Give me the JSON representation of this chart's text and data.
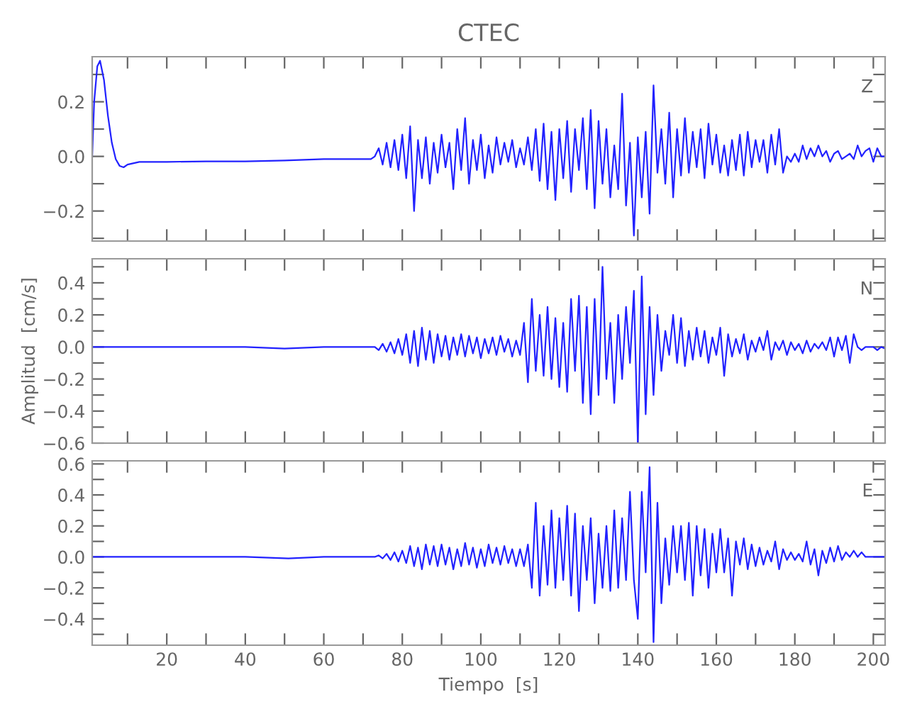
{
  "chart_data": [
    {
      "type": "line",
      "title": "CTEC",
      "annotations": [
        "Z"
      ],
      "color": "#2222ff",
      "xlim": [
        1,
        203
      ],
      "ylim": [
        -0.31,
        0.365
      ],
      "tick_labels": "y",
      "grid": false,
      "marker": "none",
      "line_style": "solid",
      "xticks": [
        {
          "value": 10,
          "label": null
        },
        {
          "value": 20,
          "label": null
        },
        {
          "value": 30,
          "label": null
        },
        {
          "value": 40,
          "label": null
        },
        {
          "value": 50,
          "label": null
        },
        {
          "value": 60,
          "label": null
        },
        {
          "value": 70,
          "label": null
        },
        {
          "value": 80,
          "label": null
        },
        {
          "value": 90,
          "label": null
        },
        {
          "value": 100,
          "label": null
        },
        {
          "value": 110,
          "label": null
        },
        {
          "value": 120,
          "label": null
        },
        {
          "value": 130,
          "label": null
        },
        {
          "value": 140,
          "label": null
        },
        {
          "value": 150,
          "label": null
        },
        {
          "value": 160,
          "label": null
        },
        {
          "value": 170,
          "label": null
        },
        {
          "value": 180,
          "label": null
        },
        {
          "value": 190,
          "label": null
        },
        {
          "value": 200,
          "label": null
        }
      ],
      "yticks": [
        {
          "value": -0.3,
          "label": null
        },
        {
          "value": -0.2,
          "label": "−0.2"
        },
        {
          "value": -0.1,
          "label": null
        },
        {
          "value": 0,
          "label": "0.0"
        },
        {
          "value": 0.1,
          "label": null
        },
        {
          "value": 0.2,
          "label": "0.2"
        },
        {
          "value": 0.3,
          "label": null
        }
      ],
      "x": [
        1,
        1.5,
        2.3,
        3,
        4,
        5,
        6,
        7,
        8,
        9,
        10,
        13,
        20,
        30,
        40,
        50,
        60,
        70,
        72,
        73,
        74,
        75,
        76,
        77,
        78,
        79,
        80,
        81,
        82,
        83,
        84,
        85,
        86,
        87,
        88,
        89,
        90,
        91,
        92,
        93,
        94,
        95,
        96,
        97,
        98,
        99,
        100,
        101,
        102,
        103,
        104,
        105,
        106,
        107,
        108,
        109,
        110,
        111,
        112,
        113,
        114,
        115,
        116,
        117,
        118,
        119,
        120,
        121,
        122,
        123,
        124,
        125,
        126,
        127,
        128,
        129,
        130,
        131,
        132,
        133,
        134,
        135,
        136,
        137,
        138,
        139,
        140,
        141,
        142,
        143,
        144,
        145,
        146,
        147,
        148,
        149,
        150,
        151,
        152,
        153,
        154,
        155,
        156,
        157,
        158,
        159,
        160,
        161,
        162,
        163,
        164,
        165,
        166,
        167,
        168,
        169,
        170,
        171,
        172,
        173,
        174,
        175,
        176,
        177,
        178,
        179,
        180,
        181,
        182,
        183,
        184,
        185,
        186,
        187,
        188,
        189,
        190,
        191,
        192,
        193,
        194,
        195,
        196,
        197,
        198,
        199,
        200,
        201,
        202,
        203
      ],
      "values": [
        0.0,
        0.2,
        0.33,
        0.35,
        0.28,
        0.15,
        0.05,
        -0.01,
        -0.035,
        -0.04,
        -0.03,
        -0.02,
        -0.02,
        -0.018,
        -0.018,
        -0.015,
        -0.01,
        -0.01,
        -0.01,
        0.0,
        0.03,
        -0.03,
        0.05,
        -0.04,
        0.06,
        -0.05,
        0.08,
        -0.08,
        0.11,
        -0.2,
        0.06,
        -0.08,
        0.07,
        -0.1,
        0.05,
        -0.06,
        0.08,
        -0.04,
        0.05,
        -0.12,
        0.1,
        -0.05,
        0.14,
        -0.1,
        0.06,
        -0.05,
        0.08,
        -0.08,
        0.04,
        -0.06,
        0.07,
        -0.03,
        0.05,
        -0.02,
        0.06,
        -0.04,
        0.03,
        -0.03,
        0.07,
        -0.05,
        0.1,
        -0.09,
        0.12,
        -0.12,
        0.09,
        -0.16,
        0.1,
        -0.08,
        0.13,
        -0.13,
        0.1,
        -0.05,
        0.14,
        -0.12,
        0.17,
        -0.19,
        0.13,
        -0.1,
        0.1,
        -0.15,
        0.04,
        -0.12,
        0.23,
        -0.18,
        0.05,
        -0.29,
        0.07,
        -0.15,
        0.09,
        -0.21,
        0.26,
        -0.06,
        0.1,
        -0.1,
        0.16,
        -0.15,
        0.1,
        -0.07,
        0.14,
        -0.06,
        0.09,
        -0.04,
        0.1,
        -0.08,
        0.12,
        -0.03,
        0.08,
        -0.06,
        0.04,
        -0.07,
        0.06,
        -0.05,
        0.08,
        -0.07,
        0.09,
        -0.04,
        0.06,
        -0.02,
        0.06,
        -0.06,
        0.08,
        -0.03,
        0.1,
        -0.06,
        0.0,
        -0.02,
        0.01,
        -0.02,
        0.04,
        -0.01,
        0.03,
        0.0,
        0.04,
        0.0,
        0.02,
        -0.02,
        0.01,
        0.02,
        -0.01,
        0.0,
        0.01,
        -0.01,
        0.04,
        0.0,
        0.02,
        0.03,
        -0.02,
        0.03,
        0.0,
        0.0
      ]
    },
    {
      "type": "line",
      "ylabel": "Amplitud  [cm/s]",
      "annotations": [
        "N"
      ],
      "color": "#2222ff",
      "xlim": [
        1,
        203
      ],
      "ylim": [
        -0.6,
        0.55
      ],
      "tick_labels": "y",
      "grid": false,
      "marker": "none",
      "line_style": "solid",
      "xticks": [
        {
          "value": 10,
          "label": null
        },
        {
          "value": 20,
          "label": null
        },
        {
          "value": 30,
          "label": null
        },
        {
          "value": 40,
          "label": null
        },
        {
          "value": 50,
          "label": null
        },
        {
          "value": 60,
          "label": null
        },
        {
          "value": 70,
          "label": null
        },
        {
          "value": 80,
          "label": null
        },
        {
          "value": 90,
          "label": null
        },
        {
          "value": 100,
          "label": null
        },
        {
          "value": 110,
          "label": null
        },
        {
          "value": 120,
          "label": null
        },
        {
          "value": 130,
          "label": null
        },
        {
          "value": 140,
          "label": null
        },
        {
          "value": 150,
          "label": null
        },
        {
          "value": 160,
          "label": null
        },
        {
          "value": 170,
          "label": null
        },
        {
          "value": 180,
          "label": null
        },
        {
          "value": 190,
          "label": null
        },
        {
          "value": 200,
          "label": null
        }
      ],
      "yticks": [
        {
          "value": -0.6,
          "label": "−0.6"
        },
        {
          "value": -0.5,
          "label": null
        },
        {
          "value": -0.4,
          "label": "−0.4"
        },
        {
          "value": -0.3,
          "label": null
        },
        {
          "value": -0.2,
          "label": "−0.2"
        },
        {
          "value": -0.1,
          "label": null
        },
        {
          "value": 0,
          "label": "0.0"
        },
        {
          "value": 0.1,
          "label": null
        },
        {
          "value": 0.2,
          "label": "0.2"
        },
        {
          "value": 0.3,
          "label": null
        },
        {
          "value": 0.4,
          "label": "0.4"
        },
        {
          "value": 0.5,
          "label": null
        }
      ],
      "x": [
        1,
        10,
        20,
        30,
        40,
        50,
        60,
        72,
        73,
        74,
        75,
        76,
        77,
        78,
        79,
        80,
        81,
        82,
        83,
        84,
        85,
        86,
        87,
        88,
        89,
        90,
        91,
        92,
        93,
        94,
        95,
        96,
        97,
        98,
        99,
        100,
        101,
        102,
        103,
        104,
        105,
        106,
        107,
        108,
        109,
        110,
        111,
        112,
        113,
        114,
        115,
        116,
        117,
        118,
        119,
        120,
        121,
        122,
        123,
        124,
        125,
        126,
        127,
        128,
        129,
        130,
        131,
        132,
        133,
        134,
        135,
        136,
        137,
        138,
        139,
        140,
        141,
        142,
        143,
        144,
        145,
        146,
        147,
        148,
        149,
        150,
        151,
        152,
        153,
        154,
        155,
        156,
        157,
        158,
        159,
        160,
        161,
        162,
        163,
        164,
        165,
        166,
        167,
        168,
        169,
        170,
        171,
        172,
        173,
        174,
        175,
        176,
        177,
        178,
        179,
        180,
        181,
        182,
        183,
        184,
        185,
        186,
        187,
        188,
        189,
        190,
        191,
        192,
        193,
        194,
        195,
        196,
        197,
        198,
        199,
        200,
        201,
        202,
        203
      ],
      "values": [
        0.0,
        0.0,
        0.0,
        0.0,
        0.0,
        -0.01,
        0.0,
        0.0,
        0.0,
        -0.02,
        0.02,
        -0.03,
        0.03,
        -0.04,
        0.05,
        -0.05,
        0.08,
        -0.1,
        0.1,
        -0.12,
        0.12,
        -0.08,
        0.1,
        -0.1,
        0.08,
        -0.06,
        0.07,
        -0.08,
        0.06,
        -0.05,
        0.08,
        -0.06,
        0.07,
        -0.04,
        0.06,
        -0.07,
        0.05,
        -0.04,
        0.06,
        -0.05,
        0.07,
        -0.03,
        0.05,
        -0.06,
        0.04,
        -0.05,
        0.15,
        -0.22,
        0.3,
        -0.15,
        0.2,
        -0.18,
        0.25,
        -0.2,
        0.18,
        -0.25,
        0.15,
        -0.28,
        0.3,
        -0.15,
        0.32,
        -0.35,
        0.25,
        -0.42,
        0.3,
        -0.3,
        0.5,
        -0.2,
        0.15,
        -0.35,
        0.2,
        -0.2,
        0.25,
        -0.1,
        0.35,
        -0.6,
        0.44,
        -0.42,
        0.25,
        -0.3,
        0.2,
        -0.15,
        0.1,
        -0.05,
        0.2,
        -0.1,
        0.18,
        -0.12,
        0.1,
        -0.08,
        0.12,
        -0.06,
        0.1,
        -0.1,
        0.06,
        -0.05,
        0.12,
        -0.18,
        0.08,
        -0.06,
        0.05,
        -0.04,
        0.08,
        -0.08,
        0.04,
        -0.03,
        0.06,
        -0.02,
        0.1,
        -0.08,
        0.03,
        -0.02,
        0.04,
        -0.05,
        0.03,
        -0.02,
        0.02,
        -0.04,
        0.04,
        -0.03,
        0.02,
        -0.01,
        0.03,
        -0.02,
        0.06,
        -0.06,
        0.06,
        -0.02,
        0.07,
        -0.1,
        0.08,
        0.0,
        -0.02,
        0.0,
        0.0,
        0.0,
        -0.02,
        0.0,
        -0.01
      ]
    },
    {
      "type": "line",
      "xlabel": "Tiempo  [s]",
      "annotations": [
        "E"
      ],
      "color": "#2222ff",
      "xlim": [
        1,
        203
      ],
      "ylim": [
        -0.57,
        0.62
      ],
      "grid": false,
      "marker": "none",
      "line_style": "solid",
      "xticks": [
        {
          "value": 10,
          "label": null
        },
        20,
        {
          "value": 30,
          "label": null
        },
        40,
        {
          "value": 50,
          "label": null
        },
        60,
        {
          "value": 70,
          "label": null
        },
        80,
        {
          "value": 90,
          "label": null
        },
        100,
        {
          "value": 110,
          "label": null
        },
        120,
        {
          "value": 130,
          "label": null
        },
        140,
        {
          "value": 150,
          "label": null
        },
        160,
        {
          "value": 170,
          "label": null
        },
        180,
        {
          "value": 190,
          "label": null
        },
        200
      ],
      "yticks": [
        {
          "value": -0.5,
          "label": null
        },
        {
          "value": -0.4,
          "label": "−0.4"
        },
        {
          "value": -0.3,
          "label": null
        },
        {
          "value": -0.2,
          "label": "−0.2"
        },
        {
          "value": -0.1,
          "label": null
        },
        {
          "value": 0,
          "label": "0.0"
        },
        {
          "value": 0.1,
          "label": null
        },
        {
          "value": 0.2,
          "label": "0.2"
        },
        {
          "value": 0.3,
          "label": null
        },
        {
          "value": 0.4,
          "label": "0.4"
        },
        {
          "value": 0.5,
          "label": null
        },
        {
          "value": 0.6,
          "label": "0.6"
        }
      ],
      "x": [
        1,
        10,
        20,
        30,
        40,
        51,
        60,
        72,
        73,
        74,
        75,
        76,
        77,
        78,
        79,
        80,
        81,
        82,
        83,
        84,
        85,
        86,
        87,
        88,
        89,
        90,
        91,
        92,
        93,
        94,
        95,
        96,
        97,
        98,
        99,
        100,
        101,
        102,
        103,
        104,
        105,
        106,
        107,
        108,
        109,
        110,
        111,
        112,
        113,
        114,
        115,
        116,
        117,
        118,
        119,
        120,
        121,
        122,
        123,
        124,
        125,
        126,
        127,
        128,
        129,
        130,
        131,
        132,
        133,
        134,
        135,
        136,
        137,
        138,
        139,
        140,
        141,
        142,
        143,
        144,
        145,
        146,
        147,
        148,
        149,
        150,
        151,
        152,
        153,
        154,
        155,
        156,
        157,
        158,
        159,
        160,
        161,
        162,
        163,
        164,
        165,
        166,
        167,
        168,
        169,
        170,
        171,
        172,
        173,
        174,
        175,
        176,
        177,
        178,
        179,
        180,
        181,
        182,
        183,
        184,
        185,
        186,
        187,
        188,
        189,
        190,
        191,
        192,
        193,
        194,
        195,
        196,
        197,
        198,
        199,
        200,
        201,
        202,
        203
      ],
      "values": [
        0.0,
        0.0,
        0.0,
        0.0,
        0.0,
        -0.01,
        0.0,
        0.0,
        0.0,
        0.01,
        -0.01,
        0.02,
        -0.02,
        0.03,
        -0.03,
        0.04,
        -0.04,
        0.07,
        -0.06,
        0.06,
        -0.08,
        0.08,
        -0.05,
        0.07,
        -0.06,
        0.08,
        -0.05,
        0.06,
        -0.08,
        0.05,
        -0.06,
        0.09,
        -0.05,
        0.06,
        -0.07,
        0.05,
        -0.06,
        0.08,
        -0.04,
        0.06,
        -0.05,
        0.07,
        -0.04,
        0.05,
        -0.06,
        0.05,
        -0.06,
        0.08,
        -0.2,
        0.35,
        -0.25,
        0.2,
        -0.18,
        0.3,
        -0.2,
        0.25,
        -0.15,
        0.33,
        -0.25,
        0.28,
        -0.35,
        0.2,
        -0.15,
        0.25,
        -0.3,
        0.15,
        -0.2,
        0.2,
        -0.22,
        0.3,
        -0.2,
        0.25,
        -0.15,
        0.42,
        -0.15,
        -0.4,
        0.42,
        -0.1,
        0.58,
        -0.55,
        0.35,
        -0.3,
        0.12,
        -0.18,
        0.2,
        -0.1,
        0.2,
        -0.15,
        0.22,
        -0.25,
        0.2,
        -0.12,
        0.18,
        -0.2,
        0.15,
        -0.1,
        0.18,
        -0.1,
        0.12,
        -0.25,
        0.1,
        -0.05,
        0.12,
        -0.08,
        0.08,
        -0.06,
        0.06,
        -0.05,
        0.04,
        -0.03,
        0.1,
        -0.08,
        0.05,
        -0.02,
        0.03,
        -0.02,
        0.02,
        -0.03,
        0.1,
        -0.05,
        0.05,
        -0.12,
        0.04,
        -0.04,
        0.06,
        -0.03,
        0.07,
        -0.02,
        0.03,
        0.0,
        0.04,
        0.0,
        0.03,
        0.0,
        0.0,
        0.0,
        0.0,
        0.0,
        0.0
      ]
    }
  ]
}
